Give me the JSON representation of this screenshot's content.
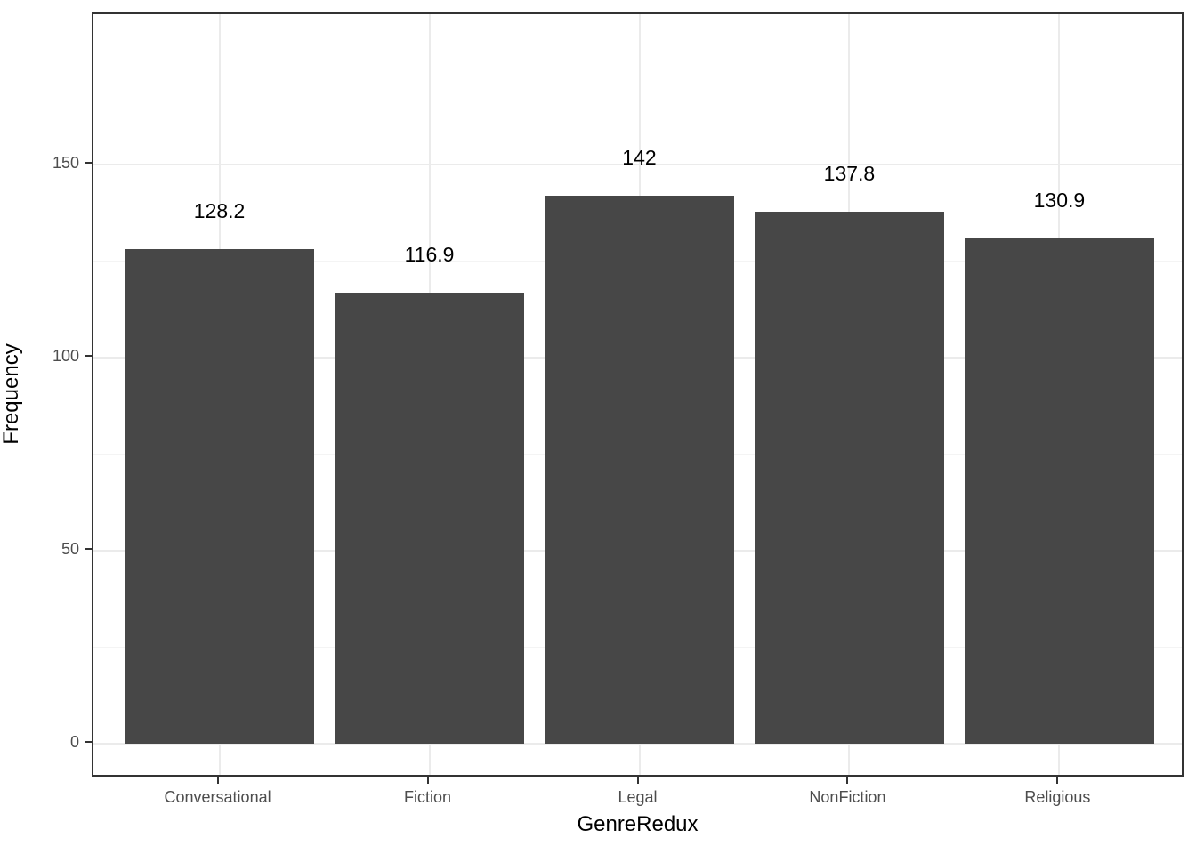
{
  "chart_data": {
    "type": "bar",
    "title": "",
    "categories": [
      "Conversational",
      "Fiction",
      "Legal",
      "NonFiction",
      "Religious"
    ],
    "values": [
      128.2,
      116.9,
      142,
      137.8,
      130.9
    ],
    "bar_labels": [
      "128.2",
      "116.9",
      "142",
      "137.8",
      "130.9"
    ],
    "xlabel": "GenreRedux",
    "ylabel": "Frequency",
    "y_ticks": [
      0,
      50,
      100,
      150
    ],
    "y_minor_ticks": [
      25,
      75,
      125,
      175
    ],
    "ylim": [
      -9,
      189
    ],
    "bar_width_ratio": 0.9,
    "grid": true,
    "legend": "none",
    "colors": {
      "bar_fill": "#474747",
      "panel_border": "#333333",
      "grid_major": "#EBEBEB",
      "grid_minor": "#F4F4F4",
      "tick_label": "#4D4D4D",
      "axis_title": "#000000",
      "value_label": "#000000",
      "background": "#FFFFFF"
    }
  }
}
